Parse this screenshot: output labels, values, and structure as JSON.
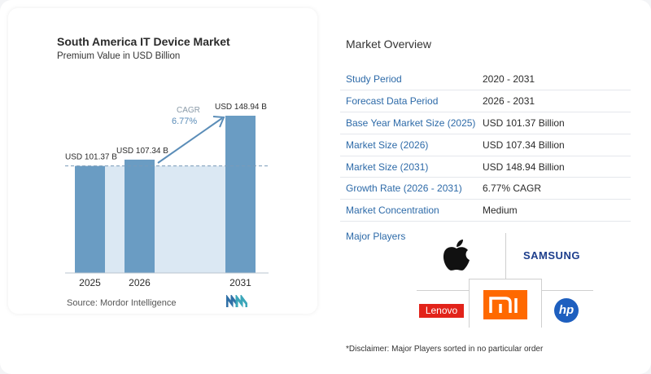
{
  "chart": {
    "title": "South America IT Device Market",
    "subtitle": "Premium Value in USD Billion",
    "cagr_label": "CAGR",
    "cagr_value": "6.77%",
    "source": "Source:  Mordor Intelligence"
  },
  "chart_data": {
    "type": "bar",
    "categories": [
      "2025",
      "2026",
      "2031"
    ],
    "values": [
      101.37,
      107.34,
      148.94
    ],
    "value_labels": [
      "USD 101.37 B",
      "USD 107.34 B",
      "USD 148.94 B"
    ],
    "title": "South America IT Device Market",
    "subtitle": "Premium Value in USD Billion",
    "annotation": "CAGR 6.77%",
    "colors": {
      "bar": "#6a9cc3",
      "band": "#dbe8f3",
      "arrow": "#5b8db8",
      "text": "#2b2b2b"
    }
  },
  "overview": {
    "title": "Market Overview",
    "rows": [
      {
        "key": "Study Period",
        "value": "2020 - 2031"
      },
      {
        "key": "Forecast Data Period",
        "value": "2026 - 2031"
      },
      {
        "key": "Base Year Market Size (2025)",
        "value": "USD 101.37 Billion"
      },
      {
        "key": "Market Size (2026)",
        "value": "USD 107.34 Billion"
      },
      {
        "key": "Market Size (2031)",
        "value": "USD 148.94 Billion"
      },
      {
        "key": "Growth Rate (2026 - 2031)",
        "value": "6.77% CAGR"
      },
      {
        "key": "Market Concentration",
        "value": "Medium"
      }
    ]
  },
  "players": {
    "label": "Major Players",
    "logos": [
      "apple-logo",
      "samsung-logo",
      "lenovo-logo",
      "xiaomi-logo",
      "hp-logo"
    ],
    "samsung_text": "SAMSUNG",
    "lenovo_text": "Lenovo",
    "xiaomi_text": "mi",
    "hp_text": "hp"
  },
  "disclaimer": "*Disclaimer: Major Players sorted in no particular order"
}
